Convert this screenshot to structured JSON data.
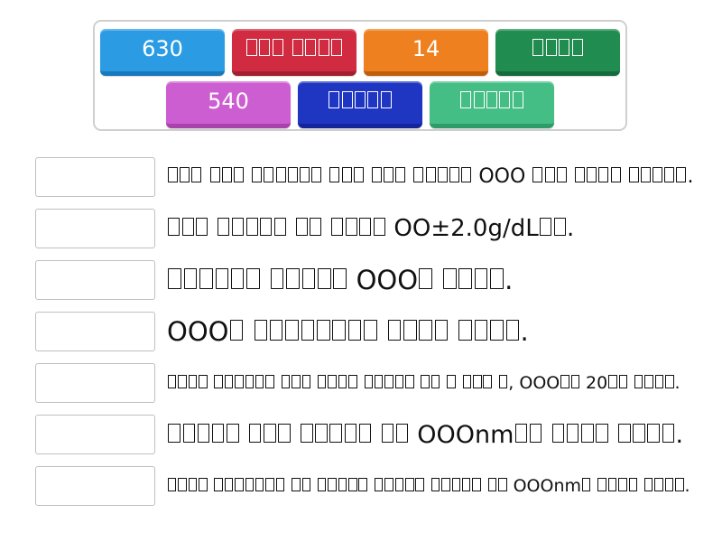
{
  "tiles": [
    {
      "label": "630",
      "color": "#2B9CE4",
      "edge": "#1879BC"
    },
    {
      "label": "□□□ □□□□",
      "color": "#D02B41",
      "edge": "#A31F30"
    },
    {
      "label": "14",
      "color": "#EF8020",
      "edge": "#C05F0A"
    },
    {
      "label": "□□□□",
      "color": "#218C50",
      "edge": "#156B3B"
    },
    {
      "label": "540",
      "color": "#CD5ED1",
      "edge": "#A843AC"
    },
    {
      "label": "□□□□□",
      "color": "#1F36C3",
      "edge": "#14249A"
    },
    {
      "label": "□□□□□",
      "color": "#44BE85",
      "edge": "#2E9C68"
    }
  ],
  "questions": [
    {
      "text": "□□□ □□□ □□□□□□ □□□ □□□ □□□□□ OOO □□□ □□□□ □□□□□."
    },
    {
      "text": "□□□ □□□□□ □□ □□□□ OO±2.0g/dL□□."
    },
    {
      "text": "□□□□□□ □□□□□ OOO□ □□□□."
    },
    {
      "text": "OOO□ □□□□□□□□ □□□□ □□□□."
    },
    {
      "text": "□□□□ □□□□□□ □□□ □□□□ □□□□□ □□ □ □□□ □, OOO□□ 20□□ □□□□."
    },
    {
      "text": "□□□□□ □□□ □□□□□ □□ OOOnm□□ □□□□ □□□□."
    },
    {
      "text": "□□□□ □□□□□□□ □□ □□□□□ □□□□□ □□□□□ □□ OOOnm□ □□□□ □□□□."
    }
  ]
}
